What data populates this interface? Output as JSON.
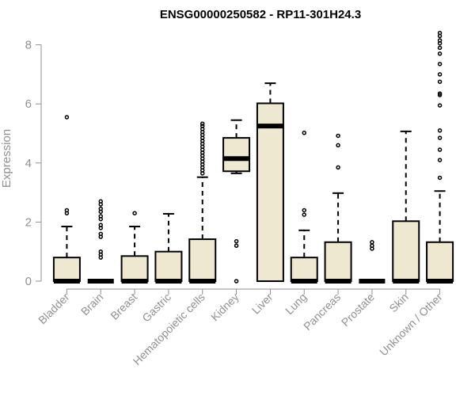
{
  "chart_data": {
    "type": "boxplot",
    "title": "ENSG00000250582 - RP11-301H24.3",
    "ylabel": "Expression",
    "xlabel": "",
    "ylim": [
      0,
      8.4
    ],
    "yticks": [
      0,
      2,
      4,
      6,
      8
    ],
    "grid": false,
    "box_fill": "#EEE8D1",
    "line_color": "#000000",
    "axis_color": "#909090",
    "categories": [
      "Bladder",
      "Brain",
      "Breast",
      "Gastric",
      "Hematopoietic cells",
      "Kidney",
      "Liver",
      "Lung",
      "Pancreas",
      "Prostate",
      "Skin",
      "Unknown / Other"
    ],
    "boxes": [
      {
        "category": "Bladder",
        "min": 0,
        "q1": 0,
        "median": 0,
        "q3": 0.8,
        "max": 1.85,
        "outliers": [
          2.3,
          2.4,
          5.55
        ]
      },
      {
        "category": "Brain",
        "min": 0,
        "q1": 0,
        "median": 0,
        "q3": 0,
        "max": 0,
        "outliers": [
          0.8,
          0.9,
          1.0,
          1.5,
          1.6,
          1.8,
          1.9,
          2.1,
          2.2,
          2.35,
          2.45,
          2.6,
          2.7
        ]
      },
      {
        "category": "Breast",
        "min": 0,
        "q1": 0,
        "median": 0,
        "q3": 0.85,
        "max": 1.85,
        "outliers": [
          2.3
        ]
      },
      {
        "category": "Gastric",
        "min": 0,
        "q1": 0,
        "median": 0,
        "q3": 1.0,
        "max": 2.28,
        "outliers": []
      },
      {
        "category": "Hematopoietic cells",
        "min": 0,
        "q1": 0,
        "median": 0,
        "q3": 1.42,
        "max": 3.52,
        "outliers": [
          3.65,
          3.75,
          3.85,
          3.95,
          4.05,
          4.15,
          4.25,
          4.35,
          4.45,
          4.55,
          4.65,
          4.75,
          4.85,
          4.95,
          5.05,
          5.15,
          5.25,
          5.33
        ]
      },
      {
        "category": "Kidney",
        "min": 3.65,
        "q1": 3.72,
        "median": 4.15,
        "q3": 4.85,
        "max": 5.45,
        "outliers": [
          0,
          1.2,
          1.35
        ]
      },
      {
        "category": "Liver",
        "min": 0,
        "q1": 0,
        "median": 5.25,
        "q3": 6.02,
        "max": 6.7,
        "outliers": []
      },
      {
        "category": "Lung",
        "min": 0,
        "q1": 0,
        "median": 0,
        "q3": 0.8,
        "max": 1.72,
        "outliers": [
          2.25,
          2.4,
          5.02
        ]
      },
      {
        "category": "Pancreas",
        "min": 0,
        "q1": 0,
        "median": 0,
        "q3": 1.32,
        "max": 2.98,
        "outliers": [
          3.85,
          4.6,
          4.92
        ]
      },
      {
        "category": "Prostate",
        "min": 0,
        "q1": 0,
        "median": 0,
        "q3": 0,
        "max": 0,
        "outliers": [
          1.1,
          1.2,
          1.32
        ]
      },
      {
        "category": "Skin",
        "min": 0,
        "q1": 0,
        "median": 0,
        "q3": 2.03,
        "max": 5.07,
        "outliers": []
      },
      {
        "category": "Unknown / Other",
        "min": 0,
        "q1": 0,
        "median": 0,
        "q3": 1.32,
        "max": 3.05,
        "outliers": [
          3.5,
          4.1,
          4.45,
          4.85,
          5.1,
          5.95,
          6.3,
          6.35,
          6.75,
          7.0,
          7.35,
          7.7,
          7.9,
          8.05,
          8.15,
          8.3,
          8.4
        ]
      }
    ]
  }
}
